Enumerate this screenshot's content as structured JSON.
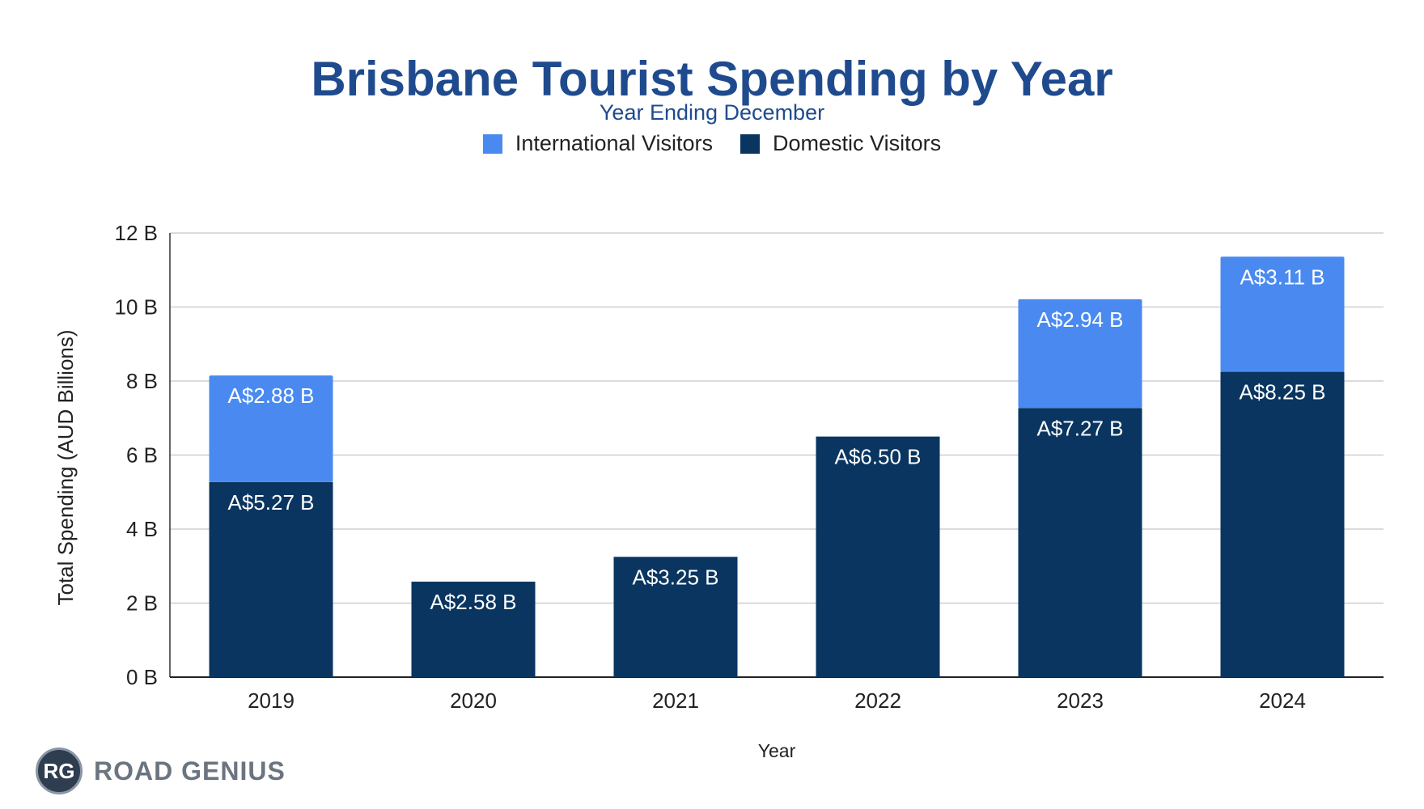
{
  "header": {
    "title": "Brisbane Tourist Spending by Year",
    "subtitle": "Year Ending December"
  },
  "legend": {
    "international_label": "International Visitors",
    "domestic_label": "Domestic Visitors"
  },
  "logo": {
    "badge": "RG",
    "text": "ROAD GENIUS"
  },
  "colors": {
    "international": "#4a8af0",
    "domestic": "#0a3560",
    "title": "#1f4b8e",
    "grid": "#cfcfcf"
  },
  "chart_data": {
    "type": "bar",
    "stacked": true,
    "categories": [
      "2019",
      "2020",
      "2021",
      "2022",
      "2023",
      "2024"
    ],
    "series": [
      {
        "name": "Domestic Visitors",
        "values": [
          5.27,
          2.58,
          3.25,
          6.5,
          7.27,
          8.25
        ],
        "labels": [
          "A$5.27 B",
          "A$2.58 B",
          "A$3.25 B",
          "A$6.50 B",
          "A$7.27 B",
          "A$8.25 B"
        ]
      },
      {
        "name": "International Visitors",
        "values": [
          2.88,
          null,
          null,
          null,
          2.94,
          3.11
        ],
        "labels": [
          "A$2.88 B",
          "",
          "",
          "",
          "A$2.94 B",
          "A$3.11 B"
        ]
      }
    ],
    "title": "Brisbane Tourist Spending by Year",
    "subtitle": "Year Ending December",
    "xlabel": "Year",
    "ylabel": "Total Spending (AUD Billions)",
    "ylim": [
      0,
      12
    ],
    "yticks": [
      0,
      2,
      4,
      6,
      8,
      10,
      12
    ],
    "ytick_labels": [
      "0 B",
      "2 B",
      "4 B",
      "6 B",
      "8 B",
      "10 B",
      "12 B"
    ],
    "grid": true,
    "legend_position": "top"
  }
}
